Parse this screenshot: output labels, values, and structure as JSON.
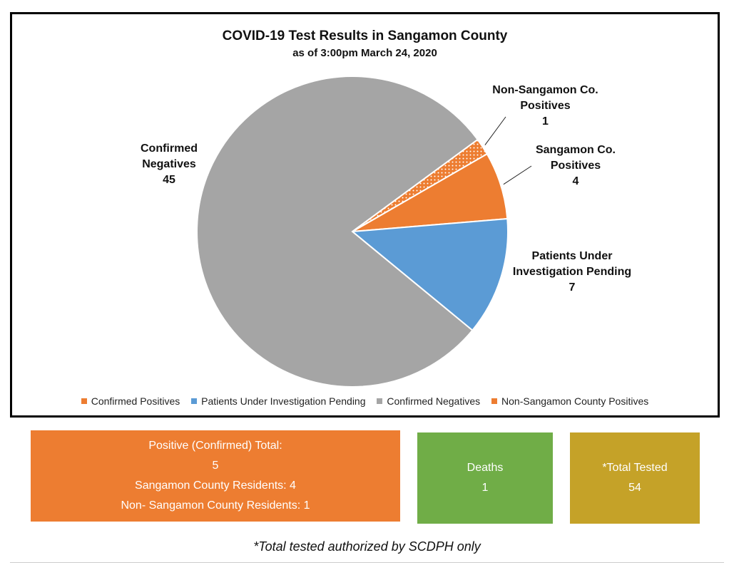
{
  "chart_data": {
    "type": "pie",
    "title": "COVID-19 Test Results in Sangamon County",
    "subtitle": "as of 3:00pm March 24, 2020",
    "slices": [
      {
        "name": "Confirmed Positives",
        "label_lines": [
          "Sangamon Co.",
          "Positives"
        ],
        "value": 4,
        "color": "#ed7d31",
        "pattern": "solid"
      },
      {
        "name": "Patients Under Investigation Pending",
        "label_lines": [
          "Patients Under",
          "Investigation Pending"
        ],
        "value": 7,
        "color": "#5b9bd5",
        "pattern": "solid"
      },
      {
        "name": "Confirmed Negatives",
        "label_lines": [
          "Confirmed",
          "Negatives"
        ],
        "value": 45,
        "color": "#a5a5a5",
        "pattern": "solid"
      },
      {
        "name": "Non-Sangamon County Positives",
        "label_lines": [
          "Non-Sangamon Co.",
          "Positives"
        ],
        "value": 1,
        "color": "#ed7d31",
        "pattern": "dotted"
      }
    ],
    "legend": {
      "position": "bottom",
      "entries": [
        "Confirmed Positives",
        "Patients Under Investigation Pending",
        "Confirmed Negatives",
        "Non-Sangamon County Positives"
      ]
    }
  },
  "summary": {
    "positive": {
      "heading": "Positive (Confirmed) Total:",
      "total": "5",
      "residents": "Sangamon County Residents: 4",
      "non_residents": "Non- Sangamon County Residents: 1"
    },
    "deaths": {
      "label": "Deaths",
      "value": "1"
    },
    "tested": {
      "label": "*Total Tested",
      "value": "54"
    }
  },
  "footnote": "*Total tested authorized by SCDPH only"
}
